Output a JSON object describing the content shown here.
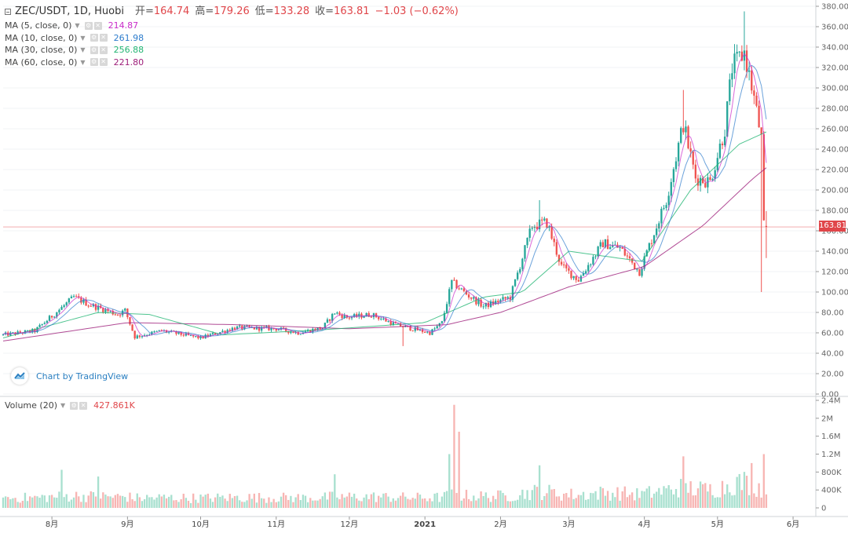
{
  "header": {
    "symbol": "ZEC/USDT, 1D, Huobi",
    "open_label": "开=",
    "open": "164.74",
    "high_label": "高=",
    "high": "179.26",
    "low_label": "低=",
    "low": "133.28",
    "close_label": "收=",
    "close": "163.81",
    "change": "−1.03 (−0.62%)"
  },
  "moving_averages": [
    {
      "label": "MA (5, close, 0)",
      "value": "214.87",
      "color": "#c92bc9"
    },
    {
      "label": "MA (10, close, 0)",
      "value": "261.98",
      "color": "#2d7ccc"
    },
    {
      "label": "MA (30, close, 0)",
      "value": "256.88",
      "color": "#22b573"
    },
    {
      "label": "MA (60, close, 0)",
      "value": "221.80",
      "color": "#9e1e7a"
    }
  ],
  "volume_legend": {
    "label": "Volume (20)",
    "value": "427.861K"
  },
  "watermark": "Chart by TradingView",
  "last_price_label": "163.81",
  "colors": {
    "up": "#26a69a",
    "down": "#ef5350",
    "up_volume": "#a8e0cf",
    "down_volume": "#f7b5b3",
    "grid": "#f0f3f5",
    "price_line": "#e0464a"
  },
  "chart_data": {
    "type": "candlestick",
    "price_axis": {
      "ylim": [
        0,
        380
      ],
      "ticks": [
        "380.00",
        "360.00",
        "340.00",
        "320.00",
        "300.00",
        "280.00",
        "260.00",
        "240.00",
        "220.00",
        "200.00",
        "180.00",
        "160.00",
        "140.00",
        "120.00",
        "100.00",
        "80.00",
        "60.00",
        "40.00",
        "20.00",
        "0.00"
      ]
    },
    "volume_axis": {
      "ylim": [
        0,
        2400000
      ],
      "ticks": [
        "2.4M",
        "2M",
        "1.6M",
        "1.2M",
        "800K",
        "400K",
        "0"
      ]
    },
    "x_axis": {
      "labels": [
        "8月",
        "9月",
        "10月",
        "11月",
        "12月",
        "2021",
        "2月",
        "3月",
        "4月",
        "5月",
        "6月"
      ],
      "date_start": "2020-07-12",
      "date_end": "2021-06-10"
    },
    "price_keypoints": [
      [
        "2020-07-12",
        58
      ],
      [
        "2020-07-25",
        62
      ],
      [
        "2020-08-10",
        95
      ],
      [
        "2020-08-16",
        88
      ],
      [
        "2020-08-28",
        78
      ],
      [
        "2020-08-31",
        82
      ],
      [
        "2020-09-04",
        56
      ],
      [
        "2020-09-15",
        62
      ],
      [
        "2020-10-01",
        55
      ],
      [
        "2020-10-15",
        65
      ],
      [
        "2020-11-01",
        64
      ],
      [
        "2020-11-10",
        60
      ],
      [
        "2020-11-20",
        65
      ],
      [
        "2020-11-25",
        80
      ],
      [
        "2020-11-30",
        75
      ],
      [
        "2020-12-10",
        78
      ],
      [
        "2020-12-20",
        68
      ],
      [
        "2020-12-25",
        65
      ],
      [
        "2021-01-03",
        60
      ],
      [
        "2021-01-08",
        70
      ],
      [
        "2021-01-12",
        110
      ],
      [
        "2021-01-18",
        98
      ],
      [
        "2021-01-25",
        86
      ],
      [
        "2021-02-05",
        95
      ],
      [
        "2021-02-14",
        165
      ],
      [
        "2021-02-20",
        168
      ],
      [
        "2021-02-26",
        125
      ],
      [
        "2021-03-05",
        112
      ],
      [
        "2021-03-15",
        148
      ],
      [
        "2021-03-22",
        143
      ],
      [
        "2021-03-30",
        120
      ],
      [
        "2021-04-10",
        190
      ],
      [
        "2021-04-17",
        265
      ],
      [
        "2021-04-22",
        212
      ],
      [
        "2021-04-28",
        208
      ],
      [
        "2021-05-04",
        260
      ],
      [
        "2021-05-07",
        320
      ],
      [
        "2021-05-12",
        335
      ],
      [
        "2021-05-16",
        290
      ],
      [
        "2021-05-19",
        250
      ],
      [
        "2021-05-20",
        165
      ],
      [
        "2021-05-21",
        163.81
      ]
    ],
    "ma_keypoints": {
      "ma30": [
        [
          "2020-07-12",
          55
        ],
        [
          "2020-08-20",
          80
        ],
        [
          "2020-09-10",
          78
        ],
        [
          "2020-10-10",
          58
        ],
        [
          "2020-11-20",
          63
        ],
        [
          "2021-01-01",
          70
        ],
        [
          "2021-01-25",
          95
        ],
        [
          "2021-02-10",
          100
        ],
        [
          "2021-03-01",
          140
        ],
        [
          "2021-03-31",
          130
        ],
        [
          "2021-04-20",
          200
        ],
        [
          "2021-05-10",
          245
        ],
        [
          "2021-05-21",
          256.88
        ]
      ],
      "ma60": [
        [
          "2020-07-12",
          52
        ],
        [
          "2020-09-01",
          70
        ],
        [
          "2020-10-15",
          68
        ],
        [
          "2020-12-01",
          64
        ],
        [
          "2021-01-10",
          68
        ],
        [
          "2021-02-01",
          80
        ],
        [
          "2021-03-01",
          105
        ],
        [
          "2021-04-01",
          125
        ],
        [
          "2021-04-25",
          165
        ],
        [
          "2021-05-15",
          210
        ],
        [
          "2021-05-21",
          221.8
        ]
      ]
    },
    "volume_spikes": [
      [
        "2021-01-13",
        2300000
      ],
      [
        "2021-01-15",
        1700000
      ],
      [
        "2021-01-11",
        1200000
      ],
      [
        "2021-05-20",
        1200000
      ],
      [
        "2021-04-17",
        1150000
      ],
      [
        "2021-05-15",
        1000000
      ],
      [
        "2021-02-17",
        950000
      ],
      [
        "2020-11-25",
        750000
      ],
      [
        "2020-08-20",
        700000
      ],
      [
        "2020-08-05",
        850000
      ]
    ]
  }
}
